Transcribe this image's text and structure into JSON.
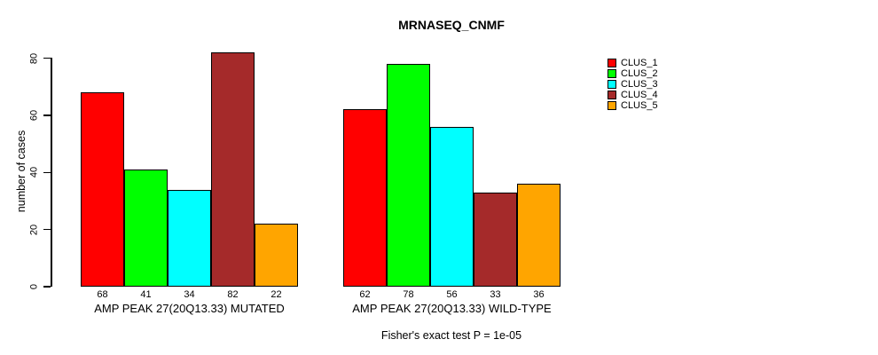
{
  "title": "MRNASEQ_CNMF",
  "chart_data": {
    "type": "bar",
    "title": "MRNASEQ_CNMF",
    "ylabel": "number of cases",
    "xlabel": "",
    "ylim": [
      0,
      80
    ],
    "yticks": [
      0,
      20,
      40,
      60,
      80
    ],
    "grid": false,
    "legend_position": "right",
    "bar_value_labels_shown": true,
    "annotation": "Fisher's exact test P = 1e-05",
    "categories": [
      "AMP PEAK 27(20Q13.33) MUTATED",
      "AMP PEAK 27(20Q13.33) WILD-TYPE"
    ],
    "series": [
      {
        "name": "CLUS_1",
        "color": "#FF0000",
        "values": [
          68,
          62
        ]
      },
      {
        "name": "CLUS_2",
        "color": "#00FF00",
        "values": [
          41,
          78
        ]
      },
      {
        "name": "CLUS_3",
        "color": "#00FFFF",
        "values": [
          34,
          56
        ]
      },
      {
        "name": "CLUS_4",
        "color": "#A52A2A",
        "values": [
          82,
          33
        ]
      },
      {
        "name": "CLUS_5",
        "color": "#FFA500",
        "values": [
          22,
          36
        ]
      }
    ]
  }
}
